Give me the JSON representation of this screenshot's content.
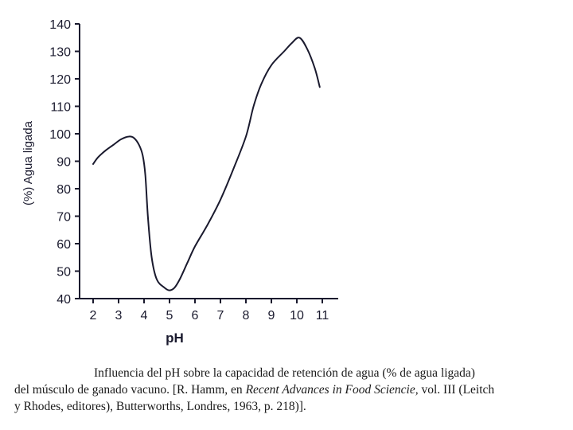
{
  "chart_data": {
    "type": "line",
    "title": "",
    "xlabel": "pH",
    "ylabel": "(%) Agua ligada",
    "xlim": [
      2,
      11
    ],
    "ylim": [
      40,
      140
    ],
    "x_ticks": [
      2,
      3,
      4,
      5,
      6,
      7,
      8,
      9,
      10,
      11
    ],
    "y_ticks": [
      40,
      50,
      60,
      70,
      80,
      90,
      100,
      110,
      120,
      130,
      140
    ],
    "grid": false,
    "legend": "none",
    "series": [
      {
        "x": [
          2.0,
          2.2,
          2.5,
          2.8,
          3.1,
          3.4,
          3.6,
          3.8,
          3.95,
          4.05,
          4.15,
          4.3,
          4.5,
          4.8,
          5.0,
          5.2,
          5.4,
          5.7,
          6.0,
          6.5,
          7.0,
          7.5,
          8.0,
          8.3,
          8.6,
          9.0,
          9.5,
          9.8,
          10.1,
          10.4,
          10.7,
          10.9
        ],
        "y": [
          89,
          91.5,
          94,
          96,
          98,
          99,
          98.5,
          96,
          92,
          85,
          70,
          55,
          47,
          44,
          43,
          44,
          47,
          53,
          59,
          67,
          76,
          87,
          99,
          110,
          118,
          125,
          130,
          133,
          135,
          131,
          124,
          117
        ]
      }
    ]
  },
  "colors": {
    "axis": "#1a1a2e",
    "line": "#1a1a2e"
  },
  "caption": {
    "line1": "Influencia del pH sobre la capacidad de retención de agua (% de agua ligada)",
    "line2_pre": "del músculo de ganado vacuno. [R. Hamm, en ",
    "line2_italic": "Recent Advances in Food Sciencie,",
    "line2_post": " vol. III (Leitch",
    "line3": "y Rhodes, editores), Butterworths, Londres, 1963, p. 218)]."
  }
}
